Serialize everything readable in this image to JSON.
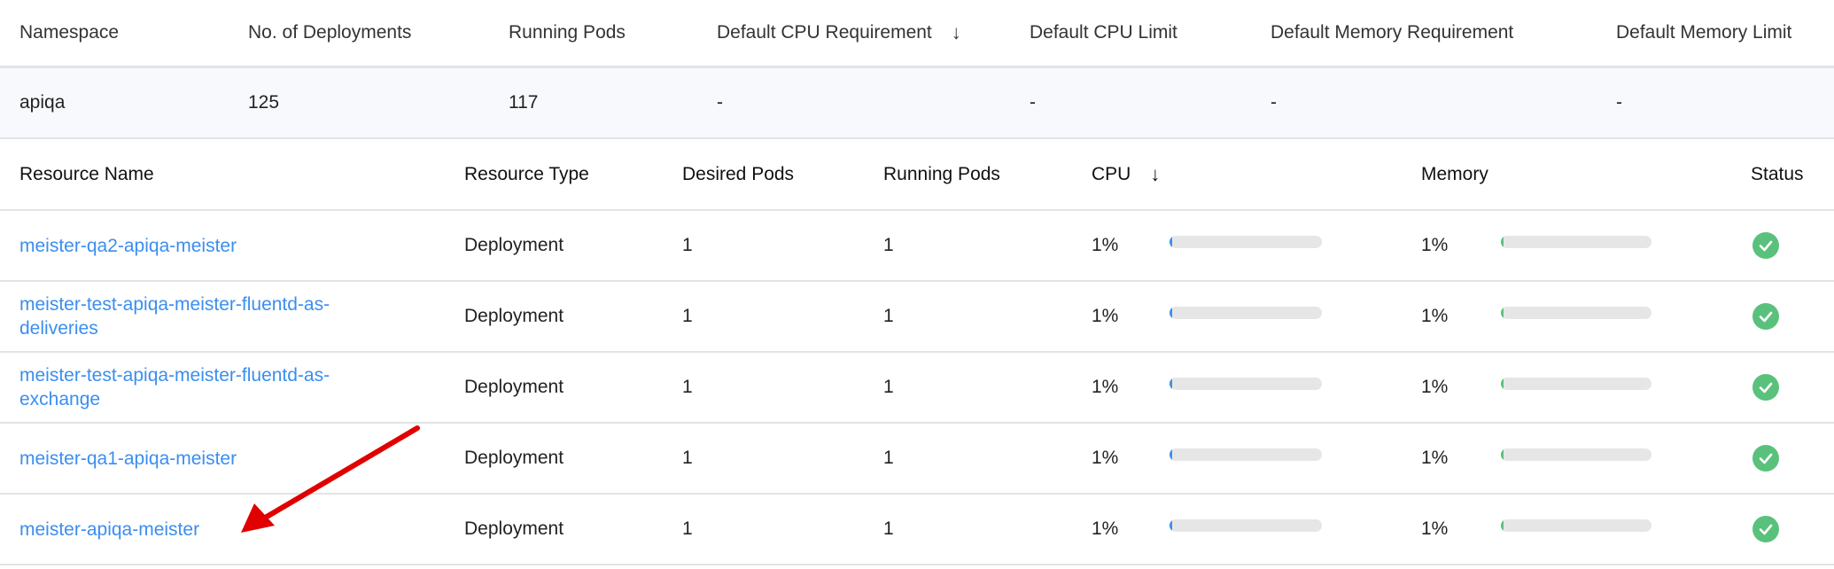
{
  "namespace_table": {
    "headers": [
      "Namespace",
      "No. of Deployments",
      "Running Pods",
      "Default CPU Requirement",
      "Default CPU Limit",
      "Default Memory Requirement",
      "Default Memory Limit"
    ],
    "sorted_column_icon": "arrow-down-icon",
    "row": [
      "apiqa",
      "125",
      "117",
      "-",
      "-",
      "-",
      "-"
    ]
  },
  "resource_table": {
    "headers": [
      "Resource Name",
      "Resource Type",
      "Desired Pods",
      "Running Pods",
      "CPU",
      "Memory",
      "Status"
    ],
    "sorted_column_icon": "arrow-down-icon",
    "rows": [
      {
        "name": "meister-qa2-apiqa-meister",
        "type": "Deployment",
        "desired": "1",
        "running": "1",
        "cpu": "1%",
        "cpu_value": 1,
        "memory": "1%",
        "memory_value": 1,
        "status": "check-circle-icon"
      },
      {
        "name": "meister-test-apiqa-meister-fluentd-as-deliveries",
        "type": "Deployment",
        "desired": "1",
        "running": "1",
        "cpu": "1%",
        "cpu_value": 1,
        "memory": "1%",
        "memory_value": 1,
        "status": "check-circle-icon"
      },
      {
        "name": "meister-test-apiqa-meister-fluentd-as-exchange",
        "type": "Deployment",
        "desired": "1",
        "running": "1",
        "cpu": "1%",
        "cpu_value": 1,
        "memory": "1%",
        "memory_value": 1,
        "status": "check-circle-icon"
      },
      {
        "name": "meister-qa1-apiqa-meister",
        "type": "Deployment",
        "desired": "1",
        "running": "1",
        "cpu": "1%",
        "cpu_value": 1,
        "memory": "1%",
        "memory_value": 1,
        "status": "check-circle-icon"
      },
      {
        "name": "meister-apiqa-meister",
        "type": "Deployment",
        "desired": "1",
        "running": "1",
        "cpu": "1%",
        "cpu_value": 1,
        "memory": "1%",
        "memory_value": 1,
        "status": "check-circle-icon"
      }
    ]
  },
  "colors": {
    "link": "#3a8ef0",
    "cpu_fill": "#3a8ef0",
    "memory_fill": "#5ac17c",
    "status_ok": "#5ac17c",
    "annotation_arrow": "#e00000",
    "namespace_row_bg": "#f8f9fc"
  }
}
